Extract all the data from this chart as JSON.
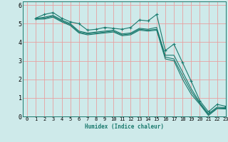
{
  "xlabel": "Humidex (Indice chaleur)",
  "bg_color": "#ceeaea",
  "grid_color": "#e8a0a0",
  "line_color": "#1a7a6e",
  "marker": "+",
  "xlim": [
    -0.5,
    23
  ],
  "ylim": [
    0,
    6.2
  ],
  "xticks": [
    0,
    1,
    2,
    3,
    4,
    5,
    6,
    7,
    8,
    9,
    10,
    11,
    12,
    13,
    14,
    15,
    16,
    17,
    18,
    19,
    20,
    21,
    22,
    23
  ],
  "yticks": [
    0,
    1,
    2,
    3,
    4,
    5,
    6
  ],
  "series": [
    [
      5.3,
      5.5,
      5.6,
      5.3,
      5.1,
      5.0,
      4.65,
      4.7,
      4.8,
      4.75,
      4.7,
      4.8,
      5.2,
      5.15,
      5.5,
      3.55,
      3.9,
      2.9,
      1.9,
      0.85,
      0.25,
      0.65,
      0.55
    ],
    [
      5.28,
      5.35,
      5.45,
      5.2,
      5.0,
      4.6,
      4.5,
      4.55,
      4.6,
      4.65,
      4.45,
      4.5,
      4.75,
      4.7,
      4.8,
      3.3,
      3.3,
      2.4,
      1.5,
      0.75,
      0.15,
      0.5,
      0.48
    ],
    [
      5.26,
      5.3,
      5.4,
      5.15,
      4.95,
      4.55,
      4.45,
      4.5,
      4.55,
      4.6,
      4.4,
      4.45,
      4.7,
      4.65,
      4.7,
      3.2,
      3.1,
      2.2,
      1.35,
      0.7,
      0.1,
      0.45,
      0.44
    ],
    [
      5.24,
      5.25,
      5.35,
      5.1,
      4.9,
      4.5,
      4.4,
      4.45,
      4.5,
      4.55,
      4.35,
      4.4,
      4.65,
      4.6,
      4.65,
      3.1,
      3.0,
      2.0,
      1.2,
      0.65,
      0.05,
      0.42,
      0.4
    ]
  ],
  "xstart": 1,
  "xlabel_fontsize": 5.5,
  "tick_fontsize": 5,
  "lw": 0.8,
  "ms": 2.5
}
